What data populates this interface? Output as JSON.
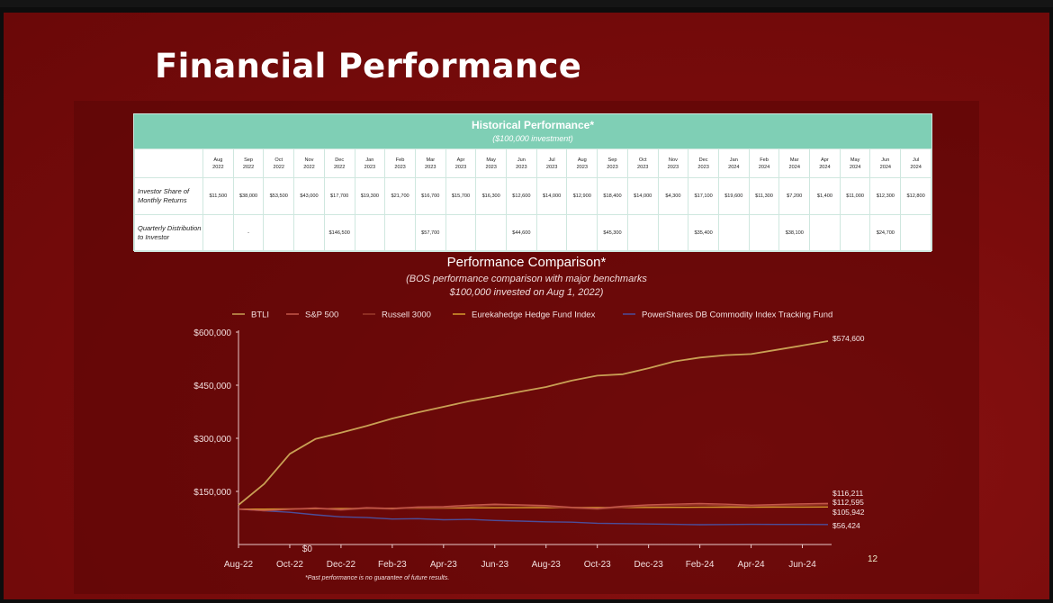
{
  "slide": {
    "title": "Financial Performance",
    "slide_number": "12",
    "footnote": "*Past performance is no guarantee of future results."
  },
  "table": {
    "title": "Historical Performance*",
    "subtitle": "($100,000 investment)",
    "months": [
      [
        "Aug",
        "2022"
      ],
      [
        "Sep",
        "2022"
      ],
      [
        "Oct",
        "2022"
      ],
      [
        "Nov",
        "2022"
      ],
      [
        "Dec",
        "2022"
      ],
      [
        "Jan",
        "2023"
      ],
      [
        "Feb",
        "2023"
      ],
      [
        "Mar",
        "2023"
      ],
      [
        "Apr",
        "2023"
      ],
      [
        "May",
        "2023"
      ],
      [
        "Jun",
        "2023"
      ],
      [
        "Jul",
        "2023"
      ],
      [
        "Aug",
        "2023"
      ],
      [
        "Sep",
        "2023"
      ],
      [
        "Oct",
        "2023"
      ],
      [
        "Nov",
        "2023"
      ],
      [
        "Dec",
        "2023"
      ],
      [
        "Jan",
        "2024"
      ],
      [
        "Feb",
        "2024"
      ],
      [
        "Mar",
        "2024"
      ],
      [
        "Apr",
        "2024"
      ],
      [
        "May",
        "2024"
      ],
      [
        "Jun",
        "2024"
      ],
      [
        "Jul",
        "2024"
      ]
    ],
    "rows": [
      {
        "label": "Investor Share of Monthly Returns",
        "values": [
          "$11,500",
          "$38,000",
          "$53,500",
          "$43,000",
          "$17,700",
          "$19,300",
          "$21,700",
          "$16,700",
          "$15,700",
          "$16,300",
          "$12,600",
          "$14,000",
          "$12,900",
          "$18,400",
          "$14,000",
          "$4,300",
          "$17,100",
          "$19,600",
          "$11,300",
          "$7,200",
          "$1,400",
          "$11,000",
          "$12,300",
          "$12,800"
        ]
      },
      {
        "label": "Quarterly Distribution to Investor",
        "values": [
          "",
          "-",
          "",
          "",
          "$146,500",
          "",
          "",
          "$57,700",
          "",
          "",
          "$44,600",
          "",
          "",
          "$45,300",
          "",
          "",
          "$35,400",
          "",
          "",
          "$38,100",
          "",
          "",
          "$24,700",
          ""
        ]
      }
    ]
  },
  "chart_data": {
    "type": "line",
    "title": "Performance Comparison*",
    "subtitle_lines": [
      "(BOS performance comparison with major benchmarks",
      "$100,000 invested on Aug 1, 2022)"
    ],
    "xlabel": "",
    "ylabel": "",
    "x_tick_labels": [
      "Aug-22",
      "Oct-22",
      "Dec-22",
      "Feb-23",
      "Apr-23",
      "Jun-23",
      "Aug-23",
      "Oct-23",
      "Dec-23",
      "Feb-24",
      "Apr-24",
      "Jun-24"
    ],
    "y_tick_labels": [
      "$0",
      "$150,000",
      "$300,000",
      "$450,000",
      "$600,000"
    ],
    "y_ticks": [
      0,
      150000,
      300000,
      450000,
      600000
    ],
    "ylim": [
      0,
      600000
    ],
    "x_months": [
      "Aug-22",
      "Sep-22",
      "Oct-22",
      "Nov-22",
      "Dec-22",
      "Jan-23",
      "Feb-23",
      "Mar-23",
      "Apr-23",
      "May-23",
      "Jun-23",
      "Jul-23",
      "Aug-23",
      "Sep-23",
      "Oct-23",
      "Nov-23",
      "Dec-23",
      "Jan-24",
      "Feb-24",
      "Mar-24",
      "Apr-24",
      "May-24",
      "Jun-24",
      "Jul-24"
    ],
    "legend_position": "top",
    "series": [
      {
        "name": "BTLI",
        "color": "#c9a054",
        "values": [
          111500,
          171000,
          256000,
          298000,
          316000,
          335000,
          356000,
          373000,
          389000,
          405000,
          418000,
          432000,
          445000,
          463000,
          477000,
          481000,
          498000,
          517000,
          528000,
          535000,
          538000,
          550000,
          562000,
          574600
        ],
        "end_label": "$574,600"
      },
      {
        "name": "S&P 500",
        "color": "#c4574a",
        "values": [
          100000,
          96000,
          100000,
          103000,
          99000,
          104000,
          102000,
          106000,
          107000,
          111000,
          114000,
          112000,
          110000,
          105000,
          102000,
          108000,
          112000,
          114000,
          116000,
          114000,
          111000,
          113000,
          115000,
          116211
        ],
        "end_label": "$116,211"
      },
      {
        "name": "Russell 3000",
        "color": "#9a3a2a",
        "values": [
          100000,
          95000,
          99000,
          102000,
          97000,
          102000,
          100000,
          104000,
          104000,
          107000,
          111000,
          110000,
          107000,
          103000,
          100000,
          105000,
          109000,
          110000,
          112000,
          110000,
          108000,
          110000,
          111000,
          112595
        ],
        "end_label": "$112,595"
      },
      {
        "name": "Eurekahedge Hedge Fund Index",
        "color": "#d69a2e",
        "values": [
          100000,
          100000,
          100500,
          101000,
          101500,
          102000,
          102500,
          103000,
          103000,
          103500,
          103800,
          104000,
          104200,
          104300,
          104400,
          104600,
          104800,
          105000,
          105200,
          105400,
          105500,
          105700,
          105800,
          105942
        ],
        "end_label": "$105,942"
      },
      {
        "name": "PowerShares DB Commodity Index Tracking Fund",
        "color": "#4c4e9a",
        "values": [
          100000,
          95000,
          91000,
          84000,
          78000,
          76000,
          72000,
          73000,
          70000,
          71000,
          68000,
          66000,
          64000,
          63000,
          60000,
          59000,
          58000,
          57000,
          56000,
          56500,
          57000,
          56800,
          56600,
          56424
        ],
        "end_label": "$56,424"
      }
    ]
  }
}
